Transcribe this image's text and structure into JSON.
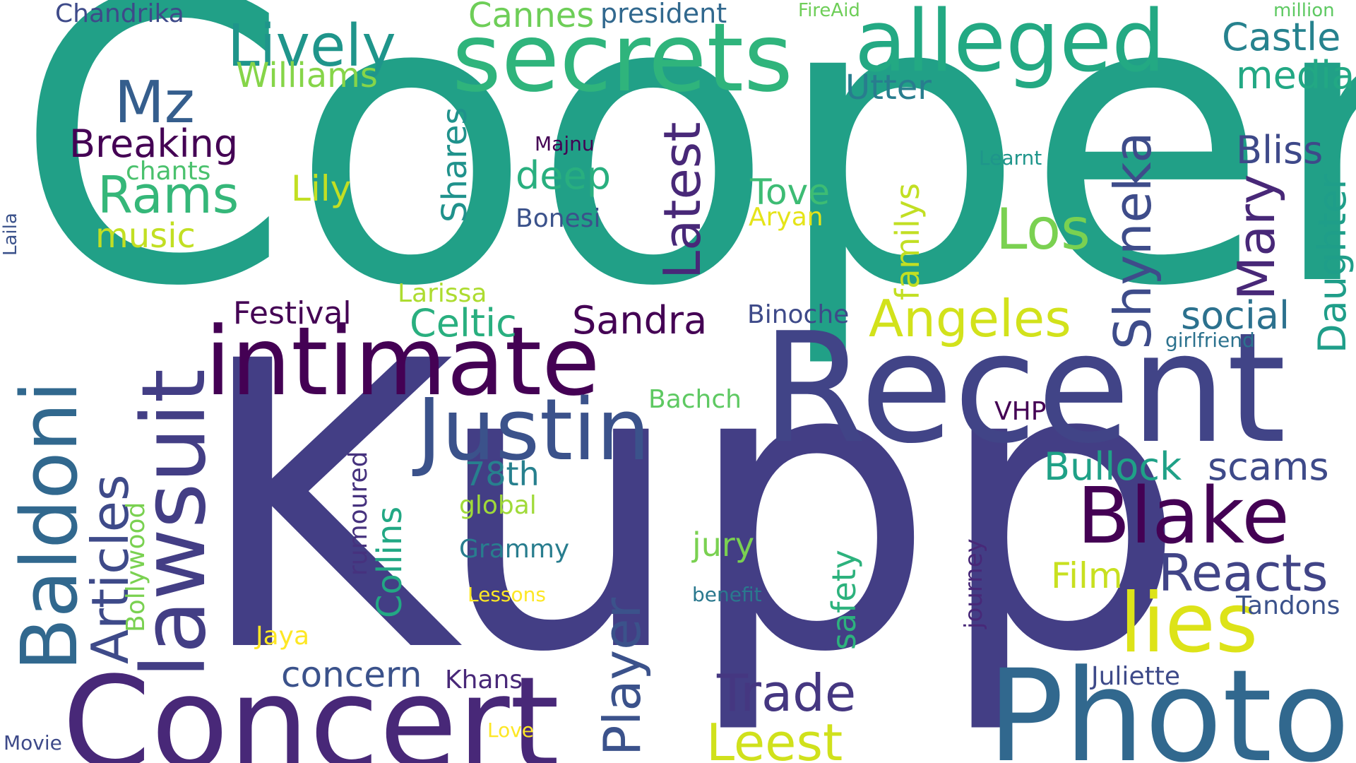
{
  "words": [
    {
      "id": "cooper",
      "text": "Cooper",
      "color": "#21a087"
    },
    {
      "id": "kupp",
      "text": "Kupp",
      "color": "#433e85"
    },
    {
      "id": "recent",
      "text": "Recent",
      "color": "#414487"
    },
    {
      "id": "photo",
      "text": "Photo",
      "color": "#31688e"
    },
    {
      "id": "concert",
      "text": "Concert",
      "color": "#482878"
    },
    {
      "id": "intimate",
      "text": "intimate",
      "color": "#440154"
    },
    {
      "id": "secrets",
      "text": "secrets",
      "color": "#2fb47c"
    },
    {
      "id": "alleged",
      "text": "alleged",
      "color": "#23a983"
    },
    {
      "id": "justin",
      "text": "Justin",
      "color": "#3b528b"
    },
    {
      "id": "blake",
      "text": "Blake",
      "color": "#440154"
    },
    {
      "id": "lawsuit",
      "text": "lawsuit",
      "color": "#433e85"
    },
    {
      "id": "baldoni",
      "text": "Baldoni",
      "color": "#31688e"
    },
    {
      "id": "lies",
      "text": "lies",
      "color": "#dde318"
    },
    {
      "id": "lively",
      "text": "Lively",
      "color": "#1f958b"
    },
    {
      "id": "mz",
      "text": "Mz",
      "color": "#355e8d"
    },
    {
      "id": "rams",
      "text": "Rams",
      "color": "#35b779"
    },
    {
      "id": "breaking",
      "text": "Breaking",
      "color": "#440154"
    },
    {
      "id": "los",
      "text": "Los",
      "color": "#7ad151"
    },
    {
      "id": "angeles",
      "text": "Angeles",
      "color": "#d2e21b"
    },
    {
      "id": "reacts",
      "text": "Reacts",
      "color": "#414487"
    },
    {
      "id": "trade",
      "text": "Trade",
      "color": "#453781"
    },
    {
      "id": "leest",
      "text": "Leest",
      "color": "#d0e11c"
    },
    {
      "id": "shyneka",
      "text": "Shyneka",
      "color": "#3e4c8a"
    },
    {
      "id": "latest",
      "text": "Latest",
      "color": "#482878"
    },
    {
      "id": "mary",
      "text": "Mary",
      "color": "#482878"
    },
    {
      "id": "articles",
      "text": "Articles",
      "color": "#3e4a89"
    },
    {
      "id": "player",
      "text": "Player",
      "color": "#3b528b"
    },
    {
      "id": "sandra",
      "text": "Sandra",
      "color": "#440154"
    },
    {
      "id": "bullock",
      "text": "Bullock",
      "color": "#1fa187"
    },
    {
      "id": "scams",
      "text": "scams",
      "color": "#3e4a89"
    },
    {
      "id": "castle",
      "text": "Castle",
      "color": "#26828e"
    },
    {
      "id": "media",
      "text": "media",
      "color": "#22a884"
    },
    {
      "id": "bliss",
      "text": "Bliss",
      "color": "#3e4989"
    },
    {
      "id": "social",
      "text": "social",
      "color": "#2c718e"
    },
    {
      "id": "daughter",
      "text": "Daughter",
      "color": "#1f9e89"
    },
    {
      "id": "celtic",
      "text": "Celtic",
      "color": "#29af7f"
    },
    {
      "id": "festival",
      "text": "Festival",
      "color": "#440154"
    },
    {
      "id": "concern",
      "text": "concern",
      "color": "#3b528b"
    },
    {
      "id": "film",
      "text": "Film",
      "color": "#c8e020"
    },
    {
      "id": "cannes",
      "text": "Cannes",
      "color": "#6ece58"
    },
    {
      "id": "williams",
      "text": "Williams",
      "color": "#86d549"
    },
    {
      "id": "president",
      "text": "president",
      "color": "#31688e"
    },
    {
      "id": "utter",
      "text": "Utter",
      "color": "#287d8e"
    },
    {
      "id": "deep",
      "text": "deep",
      "color": "#29af7f"
    },
    {
      "id": "tove",
      "text": "Tove",
      "color": "#3dbc74"
    },
    {
      "id": "familys",
      "text": "familys",
      "color": "#c2df23"
    },
    {
      "id": "lily",
      "text": "Lily",
      "color": "#c2df23"
    },
    {
      "id": "music",
      "text": "music",
      "color": "#c2df23"
    },
    {
      "id": "shares",
      "text": "Shares",
      "color": "#20928c"
    },
    {
      "id": "collins",
      "text": "Collins",
      "color": "#22a884"
    },
    {
      "id": "78th",
      "text": "78th",
      "color": "#27808e"
    },
    {
      "id": "chandrika",
      "text": "Chandrika",
      "color": "#3e4a89"
    },
    {
      "id": "safety",
      "text": "safety",
      "color": "#2db27d"
    },
    {
      "id": "jury",
      "text": "jury",
      "color": "#7ad151"
    },
    {
      "id": "grammy",
      "text": "Grammy",
      "color": "#287d8e"
    },
    {
      "id": "global",
      "text": "global",
      "color": "#a0da39"
    },
    {
      "id": "chants",
      "text": "chants",
      "color": "#4ac16d"
    },
    {
      "id": "bonesi",
      "text": "Bonesi",
      "color": "#3b528b"
    },
    {
      "id": "aryan",
      "text": "Aryan",
      "color": "#e5e419"
    },
    {
      "id": "binoche",
      "text": "Binoche",
      "color": "#3e4a89"
    },
    {
      "id": "larissa",
      "text": "Larissa",
      "color": "#addc30"
    },
    {
      "id": "bachch",
      "text": "Bachch",
      "color": "#5ec962"
    },
    {
      "id": "vhp",
      "text": "VHP",
      "color": "#440154"
    },
    {
      "id": "rumoured",
      "text": "rumoured",
      "color": "#46327e"
    },
    {
      "id": "bollywood",
      "text": "Bollywood",
      "color": "#7ad151"
    },
    {
      "id": "juliette",
      "text": "Juliette",
      "color": "#3e4a89"
    },
    {
      "id": "tandons",
      "text": "Tandons",
      "color": "#3b528b"
    },
    {
      "id": "khans",
      "text": "Khans",
      "color": "#482878"
    },
    {
      "id": "jaya",
      "text": "Jaya",
      "color": "#fde725"
    },
    {
      "id": "lessons",
      "text": "Lessons",
      "color": "#fde725"
    },
    {
      "id": "benefit",
      "text": "benefit",
      "color": "#2a788e"
    },
    {
      "id": "journey",
      "text": "journey",
      "color": "#482878"
    },
    {
      "id": "majnu",
      "text": "Majnu",
      "color": "#440154"
    },
    {
      "id": "learnt",
      "text": "Learnt",
      "color": "#1f958b"
    },
    {
      "id": "girlfriend",
      "text": "girlfriend",
      "color": "#2c728e"
    },
    {
      "id": "fireaid",
      "text": "FireAid",
      "color": "#6ece58"
    },
    {
      "id": "million",
      "text": "million",
      "color": "#5ec962"
    },
    {
      "id": "laila",
      "text": "Laila",
      "color": "#3b528b"
    },
    {
      "id": "movie",
      "text": "Movie",
      "color": "#3e4a89"
    },
    {
      "id": "love",
      "text": "Love",
      "color": "#fde725"
    }
  ]
}
